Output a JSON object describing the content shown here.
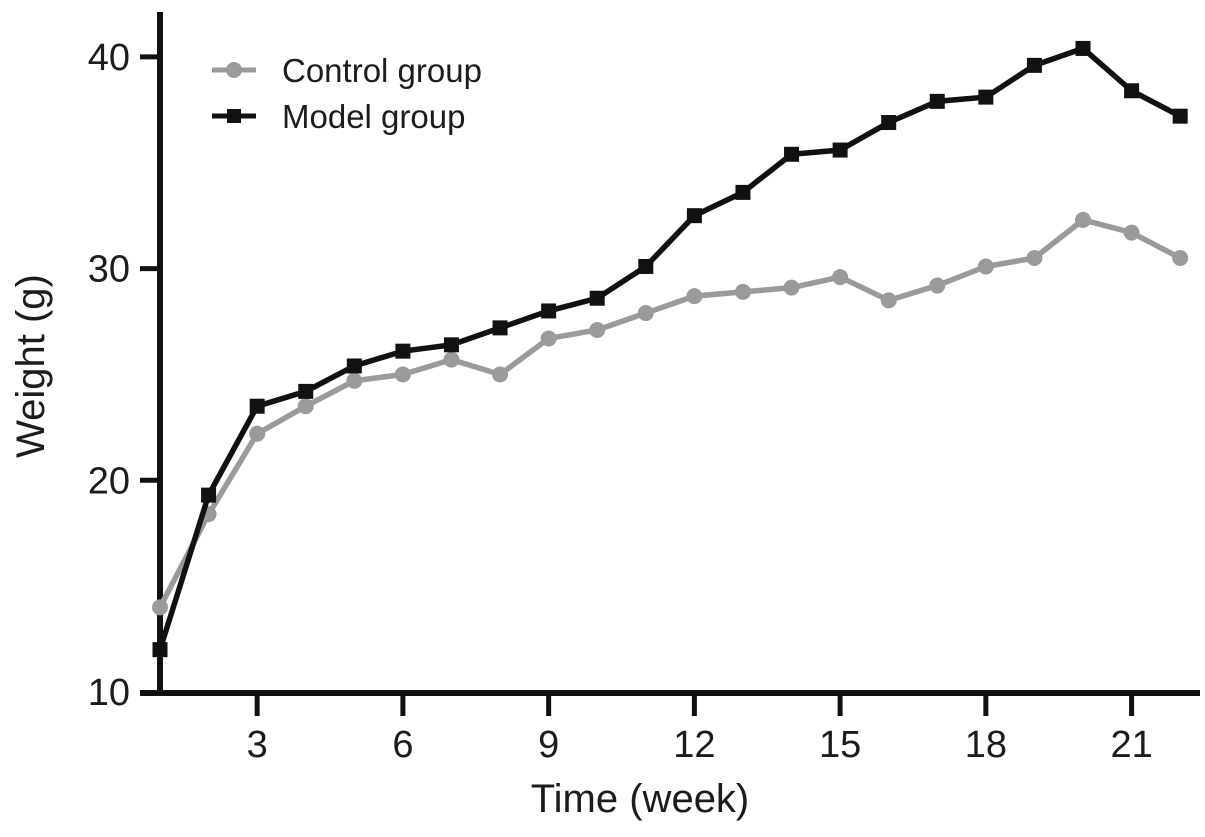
{
  "chart_data": {
    "type": "line",
    "title": "",
    "xlabel": "Time (week)",
    "ylabel": "Weight (g)",
    "x": [
      1,
      2,
      3,
      4,
      5,
      6,
      7,
      8,
      9,
      10,
      11,
      12,
      13,
      14,
      15,
      16,
      17,
      18,
      19,
      20,
      21,
      22
    ],
    "xticks": [
      3,
      6,
      9,
      12,
      15,
      18,
      21
    ],
    "yticks": [
      10,
      20,
      30,
      40
    ],
    "xlim": [
      1,
      22.5
    ],
    "ylim": [
      10,
      42.2
    ],
    "grid": false,
    "legend_position": "top-left-inside",
    "series": [
      {
        "name": "Control group",
        "marker": "circle",
        "color": "#9a9a9a",
        "values": [
          14.0,
          18.4,
          22.2,
          23.5,
          24.7,
          25.0,
          25.7,
          25.0,
          26.7,
          27.1,
          27.9,
          28.7,
          28.9,
          29.1,
          29.6,
          28.5,
          29.2,
          30.1,
          30.5,
          32.3,
          31.7,
          30.5
        ]
      },
      {
        "name": "Model group",
        "marker": "square",
        "color": "#111111",
        "values": [
          12.0,
          19.3,
          23.5,
          24.2,
          25.4,
          26.1,
          26.4,
          27.2,
          28.0,
          28.6,
          30.1,
          32.5,
          33.6,
          35.4,
          35.6,
          36.9,
          37.9,
          38.1,
          39.6,
          40.4,
          38.4,
          37.2
        ]
      }
    ],
    "axis_color": "#111111"
  }
}
